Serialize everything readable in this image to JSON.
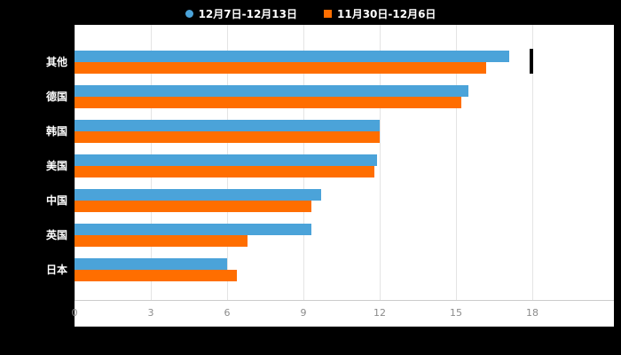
{
  "legend": {
    "series1": {
      "label": "12月7日-12月13日",
      "marker": "circle",
      "color": "#4BA3D9"
    },
    "series2": {
      "label": "11月30日-12月6日",
      "marker": "square",
      "color": "#FF6E00"
    }
  },
  "colors": {
    "background": "#000000",
    "plot_background": "#FFFFFF",
    "gridline": "#E4E4E4",
    "axis_line": "#CCCCCC",
    "tick_text": "#8C8C8C",
    "category_text": "#FFFFFF",
    "series1": "#4BA3D9",
    "series2": "#FF6E00"
  },
  "chart_data": {
    "type": "bar",
    "orientation": "horizontal",
    "title": "",
    "xlabel": "",
    "ylabel": "",
    "categories": [
      "其他",
      "德国",
      "韩国",
      "美国",
      "中国",
      "英国",
      "日本"
    ],
    "series": [
      {
        "name": "12月7日-12月13日",
        "color": "#4BA3D9",
        "values": [
          17.1,
          15.5,
          12.0,
          11.9,
          9.7,
          9.3,
          6.0
        ]
      },
      {
        "name": "11月30日-12月6日",
        "color": "#FF6E00",
        "values": [
          16.2,
          15.2,
          12.0,
          11.8,
          9.3,
          6.8,
          6.4
        ]
      }
    ],
    "xlim": [
      0,
      18
    ],
    "xticks": [
      0,
      3,
      6,
      9,
      12,
      15,
      18
    ],
    "grid": true,
    "legend_position": "top"
  }
}
